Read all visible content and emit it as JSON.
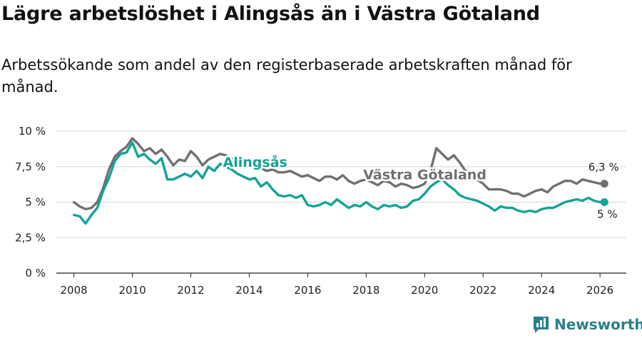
{
  "title": "Lägre arbetslöshet i Alingsås än i Västra Götaland",
  "subtitle": "Arbetssökande som andel av den registerbaserade arbetskraften månad för månad.",
  "brand": {
    "name": "Newsworthy",
    "icon": "bar-chart-logo-icon",
    "color": "#2a7f8c"
  },
  "colors": {
    "alingsas": "#14a396",
    "vastra": "#707072",
    "grid": "#d6d6d6",
    "axis": "#222222"
  },
  "chart_data": {
    "type": "line",
    "title": "Lägre arbetslöshet i Alingsås än i Västra Götaland",
    "xlabel": "",
    "ylabel": "",
    "xlim": [
      2007.4,
      2026.9
    ],
    "ylim": [
      0,
      10
    ],
    "x_ticks": [
      2008,
      2010,
      2012,
      2014,
      2016,
      2018,
      2020,
      2022,
      2024,
      2026
    ],
    "x_tick_labels": [
      "2008",
      "2010",
      "2012",
      "2014",
      "2016",
      "2018",
      "2020",
      "2022",
      "2024",
      "2026"
    ],
    "y_ticks": [
      0,
      2.5,
      5,
      7.5,
      10
    ],
    "y_tick_labels": [
      "0 %",
      "2,5 %",
      "5 %",
      "7,5 %",
      "10 %"
    ],
    "grid": true,
    "series": [
      {
        "name": "Västra Götaland",
        "label": "Västra Götaland",
        "end_label": "6,3 %",
        "x": [
          2008.0,
          2008.2,
          2008.4,
          2008.6,
          2008.8,
          2009.0,
          2009.2,
          2009.4,
          2009.6,
          2009.8,
          2010.0,
          2010.2,
          2010.4,
          2010.6,
          2010.8,
          2011.0,
          2011.2,
          2011.4,
          2011.6,
          2011.8,
          2012.0,
          2012.2,
          2012.4,
          2012.6,
          2012.8,
          2013.0,
          2013.2,
          2013.4,
          2013.6,
          2013.8,
          2014.0,
          2014.2,
          2014.4,
          2014.6,
          2014.8,
          2015.0,
          2015.2,
          2015.4,
          2015.6,
          2015.8,
          2016.0,
          2016.2,
          2016.4,
          2016.6,
          2016.8,
          2017.0,
          2017.2,
          2017.4,
          2017.6,
          2017.8,
          2018.0,
          2018.2,
          2018.4,
          2018.6,
          2018.8,
          2019.0,
          2019.2,
          2019.4,
          2019.6,
          2019.8,
          2020.0,
          2020.2,
          2020.4,
          2020.6,
          2020.8,
          2021.0,
          2021.2,
          2021.4,
          2021.6,
          2021.8,
          2022.0,
          2022.2,
          2022.4,
          2022.6,
          2022.8,
          2023.0,
          2023.2,
          2023.4,
          2023.6,
          2023.8,
          2024.0,
          2024.2,
          2024.4,
          2024.6,
          2024.8,
          2025.0,
          2025.2,
          2025.4,
          2025.6,
          2025.8,
          2026.0,
          2026.15
        ],
        "values": [
          5.0,
          4.7,
          4.5,
          4.6,
          5.0,
          6.0,
          7.3,
          8.2,
          8.6,
          8.9,
          9.5,
          9.1,
          8.6,
          8.8,
          8.4,
          8.7,
          8.2,
          7.6,
          8.0,
          7.9,
          8.6,
          8.2,
          7.6,
          8.0,
          8.2,
          8.4,
          8.3,
          8.0,
          8.2,
          7.9,
          7.7,
          7.6,
          7.4,
          7.2,
          7.3,
          7.1,
          7.1,
          7.2,
          7.0,
          6.8,
          6.9,
          6.7,
          6.5,
          6.8,
          6.8,
          6.6,
          6.9,
          6.5,
          6.3,
          6.5,
          6.6,
          6.4,
          6.2,
          6.5,
          6.4,
          6.1,
          6.3,
          6.2,
          6.0,
          6.1,
          6.3,
          7.2,
          8.8,
          8.4,
          8.0,
          8.3,
          7.8,
          7.2,
          7.0,
          6.6,
          6.3,
          5.9,
          5.9,
          5.9,
          5.8,
          5.6,
          5.6,
          5.4,
          5.6,
          5.8,
          5.9,
          5.7,
          6.1,
          6.3,
          6.5,
          6.5,
          6.3,
          6.6,
          6.5,
          6.4,
          6.3,
          6.3
        ]
      },
      {
        "name": "Alingsås",
        "label": "Alingsås",
        "end_label": "5 %",
        "x": [
          2008.0,
          2008.2,
          2008.4,
          2008.6,
          2008.8,
          2009.0,
          2009.2,
          2009.4,
          2009.6,
          2009.8,
          2010.0,
          2010.2,
          2010.4,
          2010.6,
          2010.8,
          2011.0,
          2011.2,
          2011.4,
          2011.6,
          2011.8,
          2012.0,
          2012.2,
          2012.4,
          2012.6,
          2012.8,
          2013.0,
          2013.2,
          2013.4,
          2013.6,
          2013.8,
          2014.0,
          2014.2,
          2014.4,
          2014.6,
          2014.8,
          2015.0,
          2015.2,
          2015.4,
          2015.6,
          2015.8,
          2016.0,
          2016.2,
          2016.4,
          2016.6,
          2016.8,
          2017.0,
          2017.2,
          2017.4,
          2017.6,
          2017.8,
          2018.0,
          2018.2,
          2018.4,
          2018.6,
          2018.8,
          2019.0,
          2019.2,
          2019.4,
          2019.6,
          2019.8,
          2020.0,
          2020.2,
          2020.4,
          2020.6,
          2020.8,
          2021.0,
          2021.2,
          2021.4,
          2021.6,
          2021.8,
          2022.0,
          2022.2,
          2022.4,
          2022.6,
          2022.8,
          2023.0,
          2023.2,
          2023.4,
          2023.6,
          2023.8,
          2024.0,
          2024.2,
          2024.4,
          2024.6,
          2024.8,
          2025.0,
          2025.2,
          2025.4,
          2025.6,
          2025.8,
          2026.0,
          2026.15
        ],
        "values": [
          4.1,
          4.0,
          3.5,
          4.1,
          4.6,
          5.8,
          6.7,
          7.9,
          8.4,
          8.5,
          9.2,
          8.2,
          8.4,
          8.0,
          7.7,
          8.1,
          6.6,
          6.6,
          6.8,
          7.0,
          6.8,
          7.2,
          6.7,
          7.5,
          7.2,
          7.7,
          7.5,
          7.3,
          7.0,
          6.8,
          6.6,
          6.7,
          6.1,
          6.4,
          5.9,
          5.5,
          5.4,
          5.5,
          5.3,
          5.5,
          4.8,
          4.7,
          4.8,
          5.0,
          4.8,
          5.2,
          4.9,
          4.6,
          4.8,
          4.7,
          5.0,
          4.7,
          4.5,
          4.8,
          4.7,
          4.8,
          4.6,
          4.7,
          5.1,
          5.2,
          5.6,
          6.1,
          6.4,
          6.6,
          6.2,
          5.9,
          5.5,
          5.3,
          5.2,
          5.1,
          4.9,
          4.7,
          4.4,
          4.7,
          4.6,
          4.6,
          4.4,
          4.3,
          4.4,
          4.3,
          4.5,
          4.6,
          4.6,
          4.8,
          5.0,
          5.1,
          5.2,
          5.1,
          5.3,
          5.1,
          5.0,
          5.0
        ]
      }
    ]
  }
}
